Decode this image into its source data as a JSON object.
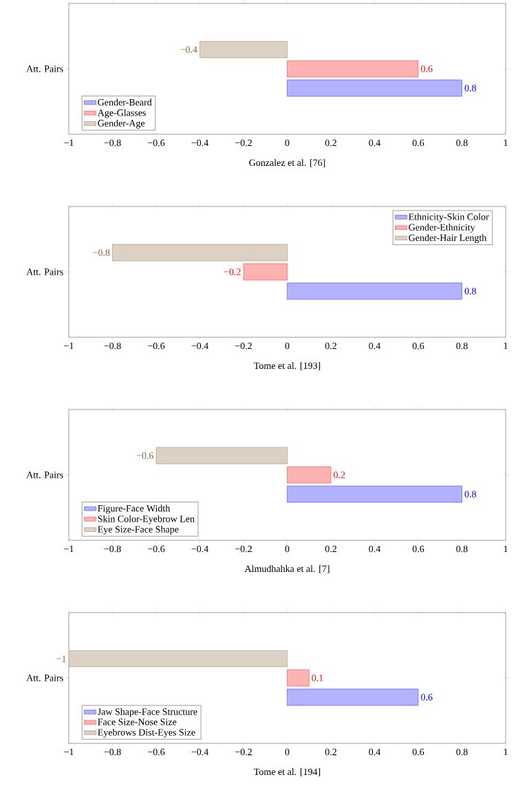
{
  "chart_data": [
    {
      "type": "bar",
      "orientation": "horizontal",
      "categories": [
        "Att. Pairs"
      ],
      "xlabel": "Gonzalez et al. [76]",
      "xlim": [
        -1,
        1
      ],
      "xticks": [
        {
          "value": -1,
          "label": "−1"
        },
        {
          "value": -0.8,
          "label": "−0.8"
        },
        {
          "value": -0.6,
          "label": "−0.6"
        },
        {
          "value": -0.4,
          "label": "−0.4"
        },
        {
          "value": -0.2,
          "label": "−0.2"
        },
        0,
        0.2,
        0.4,
        0.6,
        0.8,
        1
      ],
      "legend": "bottom left",
      "grid": false,
      "series": [
        {
          "name": "Gender-Beard",
          "color": "#0000ff",
          "values": [
            0.8
          ],
          "value_labels": [
            "0.8"
          ]
        },
        {
          "name": "Age-Glasses",
          "color": "#ff0000",
          "values": [
            0.6
          ],
          "value_labels": [
            "0.6"
          ]
        },
        {
          "name": "Gender-Age",
          "color": "#8c6239",
          "values": [
            -0.4
          ],
          "value_labels": [
            "−0.4"
          ]
        }
      ]
    },
    {
      "type": "bar",
      "orientation": "horizontal",
      "categories": [
        "Att. Pairs"
      ],
      "xlabel": "Tome et al. [193]",
      "xlim": [
        -1,
        1
      ],
      "xticks": [
        {
          "value": -1,
          "label": "−1"
        },
        {
          "value": -0.8,
          "label": "−0.8"
        },
        {
          "value": -0.6,
          "label": "−0.6"
        },
        {
          "value": -0.4,
          "label": "−0.4"
        },
        {
          "value": -0.2,
          "label": "−0.2"
        },
        0,
        0.2,
        0.4,
        0.6,
        0.8,
        1
      ],
      "legend": "top right",
      "grid": false,
      "series": [
        {
          "name": "Ethnicity-Skin Color",
          "color": "#0000ff",
          "values": [
            0.8
          ],
          "value_labels": [
            "0.8"
          ]
        },
        {
          "name": "Gender-Ethnicity",
          "color": "#ff0000",
          "values": [
            -0.2
          ],
          "value_labels": [
            "−0.2"
          ]
        },
        {
          "name": "Gender-Hair Length",
          "color": "#8c6239",
          "values": [
            -0.8
          ],
          "value_labels": [
            "−0.8"
          ]
        }
      ]
    },
    {
      "type": "bar",
      "orientation": "horizontal",
      "categories": [
        "Att. Pairs"
      ],
      "xlabel": "Almudhahka et al. [7]",
      "xlim": [
        -1,
        1
      ],
      "xticks": [
        {
          "value": -1,
          "label": "−1"
        },
        {
          "value": -0.8,
          "label": "−0.8"
        },
        {
          "value": -0.6,
          "label": "−0.6"
        },
        {
          "value": -0.4,
          "label": "−0.4"
        },
        {
          "value": -0.2,
          "label": "−0.2"
        },
        0,
        0.2,
        0.4,
        0.6,
        0.8,
        1
      ],
      "legend": "bottom left",
      "grid": false,
      "series": [
        {
          "name": "Figure-Face Width",
          "color": "#0000ff",
          "values": [
            0.8
          ],
          "value_labels": [
            "0.8"
          ]
        },
        {
          "name": "Skin Color-Eyebrow Len",
          "color": "#ff0000",
          "values": [
            0.2
          ],
          "value_labels": [
            "0.2"
          ]
        },
        {
          "name": "Eye Size-Face Shape",
          "color": "#8c6239",
          "values": [
            -0.6
          ],
          "value_labels": [
            "−0.6"
          ]
        }
      ]
    },
    {
      "type": "bar",
      "orientation": "horizontal",
      "categories": [
        "Att. Pairs"
      ],
      "xlabel": "Tome et al. [194]",
      "xlim": [
        -1,
        1
      ],
      "xticks": [
        {
          "value": -1,
          "label": "−1"
        },
        {
          "value": -0.8,
          "label": "−0.8"
        },
        {
          "value": -0.6,
          "label": "−0.6"
        },
        {
          "value": -0.4,
          "label": "−0.4"
        },
        {
          "value": -0.2,
          "label": "−0.2"
        },
        0,
        0.2,
        0.4,
        0.6,
        0.8,
        1
      ],
      "legend": "bottom left",
      "grid": false,
      "series": [
        {
          "name": "Jaw Shape-Face Structure",
          "color": "#0000ff",
          "values": [
            0.6
          ],
          "value_labels": [
            "0.6"
          ]
        },
        {
          "name": "Face Size-Nose Size",
          "color": "#ff0000",
          "values": [
            0.1
          ],
          "value_labels": [
            "0.1"
          ]
        },
        {
          "name": "Eyebrows Dist-Eyes Size",
          "color": "#8c6239",
          "values": [
            -1
          ],
          "value_labels": [
            "−1"
          ]
        }
      ]
    }
  ]
}
